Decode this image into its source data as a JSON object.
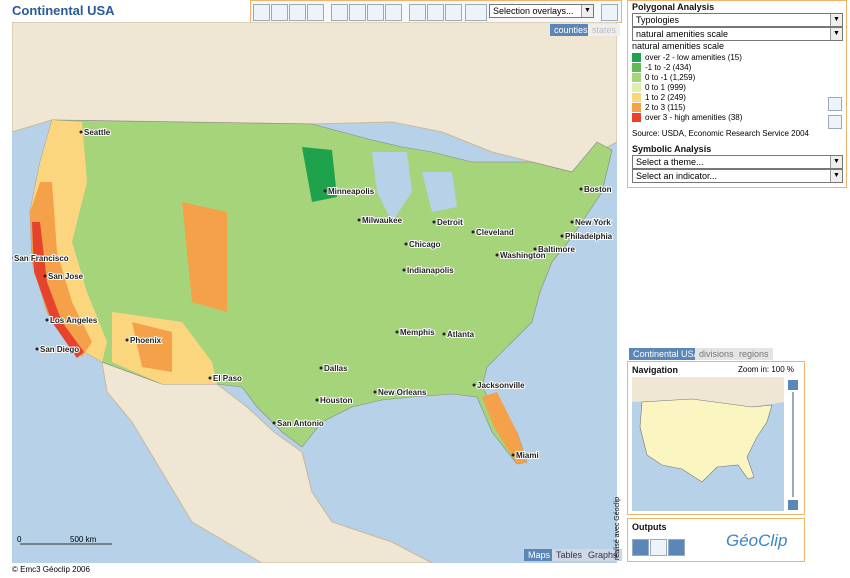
{
  "header": {
    "title": "Continental USA"
  },
  "toolbar": {
    "overlay_select": "Selection overlays..."
  },
  "map": {
    "layer_tabs": [
      "counties",
      "states"
    ],
    "cities": [
      "Seattle",
      "Minneapolis",
      "Milwaukee",
      "Detroit",
      "Boston",
      "New York",
      "Cleveland",
      "Philadelphia",
      "Baltimore",
      "Chicago",
      "Washington",
      "San Francisco",
      "Indianapolis",
      "San Jose",
      "Los Angeles",
      "Memphis",
      "Atlanta",
      "San Diego",
      "Phoenix",
      "Dallas",
      "El Paso",
      "Jacksonville",
      "Houston",
      "New Orleans",
      "San Antonio",
      "Miami"
    ],
    "scale": [
      "0",
      "500 km"
    ],
    "view_tabs": [
      "Maps",
      "Tables",
      "Graphs"
    ],
    "copyright": "© Emc3 Géoclip 2006"
  },
  "polygonal_analysis": {
    "title": "Polygonal Analysis",
    "typology_select": "Typologies",
    "indicator_select": "natural amenities scale",
    "legend_title": "natural amenities scale",
    "legend": [
      {
        "label": "over -2 - low amenities (15)",
        "color": "#1ea34c"
      },
      {
        "label": "-1 to -2 (434)",
        "color": "#62ba52"
      },
      {
        "label": "0 to -1 (1,259)",
        "color": "#a6d47a"
      },
      {
        "label": "0 to 1 (999)",
        "color": "#e0efab"
      },
      {
        "label": "1 to 2 (249)",
        "color": "#fbd67f"
      },
      {
        "label": "2 to 3 (115)",
        "color": "#f4a14a"
      },
      {
        "label": "over 3 - high amenities (38)",
        "color": "#e6432c"
      }
    ],
    "source": "Source: USDA, Economic Research Service 2004"
  },
  "symbolic_analysis": {
    "title": "Symbolic Analysis",
    "theme_select": "Select a theme...",
    "indicator_select": "Select an indicator..."
  },
  "navigation": {
    "tabs": [
      "Continental USA",
      "divisions",
      "regions"
    ],
    "title": "Navigation",
    "zoom": "Zoom in: 100 %"
  },
  "outputs": {
    "title": "Outputs",
    "logo": "GéoClip",
    "credit": "réalisé avec Géoclip"
  }
}
